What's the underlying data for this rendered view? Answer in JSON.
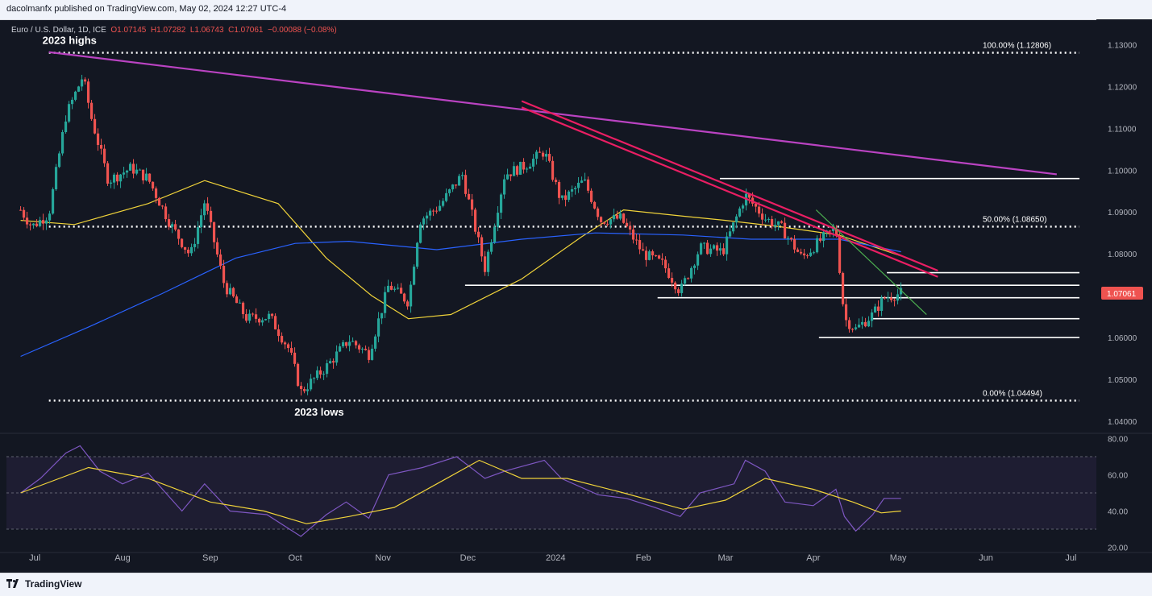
{
  "header": {
    "publisher": "dacolmanfx published on TradingView.com, May 02, 2024 12:27 UTC-4"
  },
  "symbol": {
    "name": "Euro / U.S. Dollar, 1D, ICE",
    "open": "O1.07145",
    "high": "H1.07282",
    "low": "L1.06743",
    "close": "C1.07061",
    "change": "−0.00088 (−0.08%)"
  },
  "footer": {
    "brand": "TradingView"
  },
  "colors": {
    "background": "#131722",
    "up": "#26a69a",
    "down": "#ef5350",
    "trend_magenta": "#ba43c2",
    "trend_pink": "#e91e63",
    "trend_green": "#4caf50",
    "ma50": "#f0d33a",
    "ma200": "#2962ff",
    "rsi": "#7e57c2",
    "rsi_ma": "#f0d33a"
  },
  "chart_data": [
    {
      "type": "candlestick",
      "title": "Euro / U.S. Dollar, 1D, ICE",
      "x_ticks": [
        "Jul",
        "Aug",
        "Sep",
        "Oct",
        "Nov",
        "Dec",
        "2024",
        "Feb",
        "Mar",
        "Apr",
        "May",
        "Jun",
        "Jul"
      ],
      "y_ticks": [
        "1.13000",
        "1.12000",
        "1.11000",
        "1.10000",
        "1.09000",
        "1.08000",
        "1.07000",
        "1.06000",
        "1.05000",
        "1.04000"
      ],
      "ylim": [
        1.0375,
        1.1345
      ],
      "last_price": "1.07061",
      "ohlc_last": {
        "open": 1.07145,
        "high": 1.07282,
        "low": 1.06743,
        "close": 1.07061
      },
      "close_series": [
        {
          "date": "2023-06-26",
          "close": 1.0905
        },
        {
          "date": "2023-06-30",
          "close": 1.0865
        },
        {
          "date": "2023-07-06",
          "close": 1.0895
        },
        {
          "date": "2023-07-12",
          "close": 1.113
        },
        {
          "date": "2023-07-18",
          "close": 1.1225
        },
        {
          "date": "2023-07-21",
          "close": 1.1125
        },
        {
          "date": "2023-07-27",
          "close": 1.0975
        },
        {
          "date": "2023-08-04",
          "close": 1.1005
        },
        {
          "date": "2023-08-10",
          "close": 1.098
        },
        {
          "date": "2023-08-18",
          "close": 1.087
        },
        {
          "date": "2023-08-25",
          "close": 1.0795
        },
        {
          "date": "2023-08-30",
          "close": 1.0925
        },
        {
          "date": "2023-09-06",
          "close": 1.0725
        },
        {
          "date": "2023-09-14",
          "close": 1.0645
        },
        {
          "date": "2023-09-22",
          "close": 1.065
        },
        {
          "date": "2023-09-29",
          "close": 1.057
        },
        {
          "date": "2023-10-03",
          "close": 1.047
        },
        {
          "date": "2023-10-12",
          "close": 1.053
        },
        {
          "date": "2023-10-20",
          "close": 1.0595
        },
        {
          "date": "2023-10-27",
          "close": 1.056
        },
        {
          "date": "2023-11-03",
          "close": 1.0725
        },
        {
          "date": "2023-11-10",
          "close": 1.0685
        },
        {
          "date": "2023-11-14",
          "close": 1.088
        },
        {
          "date": "2023-11-21",
          "close": 1.0915
        },
        {
          "date": "2023-11-29",
          "close": 1.099
        },
        {
          "date": "2023-12-07",
          "close": 1.0765
        },
        {
          "date": "2023-12-14",
          "close": 1.099
        },
        {
          "date": "2023-12-21",
          "close": 1.101
        },
        {
          "date": "2023-12-28",
          "close": 1.1045
        },
        {
          "date": "2024-01-03",
          "close": 1.0925
        },
        {
          "date": "2024-01-11",
          "close": 1.0975
        },
        {
          "date": "2024-01-17",
          "close": 1.088
        },
        {
          "date": "2024-01-24",
          "close": 1.0885
        },
        {
          "date": "2024-02-01",
          "close": 1.08
        },
        {
          "date": "2024-02-08",
          "close": 1.0775
        },
        {
          "date": "2024-02-14",
          "close": 1.071
        },
        {
          "date": "2024-02-21",
          "close": 1.0815
        },
        {
          "date": "2024-02-29",
          "close": 1.0805
        },
        {
          "date": "2024-03-08",
          "close": 1.094
        },
        {
          "date": "2024-03-15",
          "close": 1.0885
        },
        {
          "date": "2024-03-21",
          "close": 1.086
        },
        {
          "date": "2024-03-28",
          "close": 1.079
        },
        {
          "date": "2024-04-04",
          "close": 1.0835
        },
        {
          "date": "2024-04-09",
          "close": 1.086
        },
        {
          "date": "2024-04-12",
          "close": 1.0645
        },
        {
          "date": "2024-04-16",
          "close": 1.062
        },
        {
          "date": "2024-04-22",
          "close": 1.0655
        },
        {
          "date": "2024-04-26",
          "close": 1.0695
        },
        {
          "date": "2024-05-02",
          "close": 1.07061
        }
      ],
      "levels": [
        {
          "label": "100.00% (1.12806)",
          "price": 1.12806,
          "style": "dotted",
          "from": "2023-07-06",
          "to": "2024-07-10"
        },
        {
          "label": "50.00% (1.08650)",
          "price": 1.0865,
          "style": "dotted",
          "from": "2023-07-06",
          "to": "2024-07-10"
        },
        {
          "label": "0.00% (1.04494)",
          "price": 1.04494,
          "style": "dotted",
          "from": "2023-07-06",
          "to": "2024-07-10"
        },
        {
          "label": "",
          "price": 1.098,
          "style": "solid",
          "from": "2024-02-28",
          "to": "2024-07-10"
        },
        {
          "label": "",
          "price": 1.0755,
          "style": "solid",
          "from": "2024-04-27",
          "to": "2024-07-10"
        },
        {
          "label": "",
          "price": 1.0725,
          "style": "solid",
          "from": "2023-11-30",
          "to": "2024-07-10"
        },
        {
          "label": "",
          "price": 1.0695,
          "style": "solid",
          "from": "2024-02-06",
          "to": "2024-07-10"
        },
        {
          "label": "",
          "price": 1.0645,
          "style": "solid",
          "from": "2024-04-22",
          "to": "2024-07-10"
        },
        {
          "label": "",
          "price": 1.06,
          "style": "solid",
          "from": "2024-04-03",
          "to": "2024-07-10"
        }
      ],
      "annotations": [
        {
          "text": "2023 highs",
          "date": "2023-07-06",
          "price": 1.129
        },
        {
          "text": "2023 lows",
          "date": "2023-10-03",
          "price": 1.044
        }
      ],
      "trendlines": [
        {
          "name": "long-term-resistance",
          "color": "magenta",
          "points": [
            [
              "2023-07-06",
              1.1282
            ],
            [
              "2024-06-26",
              1.099
            ]
          ]
        },
        {
          "name": "channel-upper",
          "color": "pink",
          "points": [
            [
              "2023-12-20",
              1.1165
            ],
            [
              "2024-05-15",
              1.076
            ]
          ]
        },
        {
          "name": "channel-lower",
          "color": "pink",
          "points": [
            [
              "2023-12-20",
              1.115
            ],
            [
              "2024-05-15",
              1.0745
            ]
          ]
        },
        {
          "name": "short-term-downtrend",
          "color": "green",
          "points": [
            [
              "2024-04-02",
              1.0905
            ],
            [
              "2024-05-11",
              1.0655
            ]
          ]
        }
      ],
      "moving_averages": [
        {
          "name": "50-day",
          "color": "yellow",
          "points": [
            [
              "2023-06-26",
              1.088
            ],
            [
              "2023-07-15",
              1.087
            ],
            [
              "2023-08-10",
              1.092
            ],
            [
              "2023-08-30",
              1.0975
            ],
            [
              "2023-09-25",
              1.092
            ],
            [
              "2023-10-12",
              1.079
            ],
            [
              "2023-10-28",
              1.07
            ],
            [
              "2023-11-10",
              1.0645
            ],
            [
              "2023-11-25",
              1.0655
            ],
            [
              "2023-12-20",
              1.074
            ],
            [
              "2024-01-10",
              1.084
            ],
            [
              "2024-01-25",
              1.0905
            ],
            [
              "2024-02-15",
              1.089
            ],
            [
              "2024-03-01",
              1.088
            ],
            [
              "2024-03-20",
              1.0865
            ],
            [
              "2024-04-10",
              1.0845
            ],
            [
              "2024-05-02",
              1.0795
            ]
          ]
        },
        {
          "name": "200-day",
          "color": "blue",
          "points": [
            [
              "2023-06-26",
              1.0555
            ],
            [
              "2023-07-20",
              1.0625
            ],
            [
              "2023-08-15",
              1.0705
            ],
            [
              "2023-09-10",
              1.079
            ],
            [
              "2023-10-01",
              1.0825
            ],
            [
              "2023-10-20",
              1.083
            ],
            [
              "2023-11-20",
              1.081
            ],
            [
              "2023-12-20",
              1.0835
            ],
            [
              "2024-01-15",
              1.085
            ],
            [
              "2024-02-15",
              1.0845
            ],
            [
              "2024-03-10",
              1.0835
            ],
            [
              "2024-04-10",
              1.0835
            ],
            [
              "2024-05-02",
              1.0805
            ]
          ]
        }
      ]
    },
    {
      "type": "line",
      "title": "RSI",
      "y_ticks": [
        "80.00",
        "60.00",
        "40.00",
        "20.00"
      ],
      "ylim": [
        18,
        82
      ],
      "band": [
        30,
        70
      ],
      "midline": 50,
      "series": [
        {
          "name": "",
          "color": "purple",
          "values": [
            [
              "2023-06-26",
              50
            ],
            [
              "2023-07-03",
              58
            ],
            [
              "2023-07-12",
              72
            ],
            [
              "2023-07-17",
              76
            ],
            [
              "2023-07-24",
              62
            ],
            [
              "2023-08-01",
              55
            ],
            [
              "2023-08-10",
              61
            ],
            [
              "2023-08-22",
              40
            ],
            [
              "2023-08-30",
              55
            ],
            [
              "2023-09-08",
              40
            ],
            [
              "2023-09-21",
              38
            ],
            [
              "2023-10-03",
              26
            ],
            [
              "2023-10-12",
              38
            ],
            [
              "2023-10-19",
              45
            ],
            [
              "2023-10-27",
              36
            ],
            [
              "2023-11-03",
              60
            ],
            [
              "2023-11-15",
              64
            ],
            [
              "2023-11-27",
              70
            ],
            [
              "2023-12-07",
              58
            ],
            [
              "2023-12-14",
              62
            ],
            [
              "2023-12-28",
              68
            ],
            [
              "2024-01-03",
              58
            ],
            [
              "2024-01-16",
              49
            ],
            [
              "2024-01-26",
              47
            ],
            [
              "2024-02-05",
              42
            ],
            [
              "2024-02-14",
              37
            ],
            [
              "2024-02-21",
              50
            ],
            [
              "2024-03-04",
              55
            ],
            [
              "2024-03-08",
              68
            ],
            [
              "2024-03-15",
              62
            ],
            [
              "2024-03-22",
              45
            ],
            [
              "2024-04-01",
              43
            ],
            [
              "2024-04-09",
              52
            ],
            [
              "2024-04-12",
              37
            ],
            [
              "2024-04-16",
              29
            ],
            [
              "2024-04-22",
              38
            ],
            [
              "2024-04-26",
              47
            ],
            [
              "2024-05-02",
              47
            ]
          ]
        },
        {
          "name": "",
          "color": "yellow",
          "values": [
            [
              "2023-06-26",
              50
            ],
            [
              "2023-07-20",
              64
            ],
            [
              "2023-08-10",
              58
            ],
            [
              "2023-09-01",
              45
            ],
            [
              "2023-09-20",
              40
            ],
            [
              "2023-10-05",
              33
            ],
            [
              "2023-10-20",
              37
            ],
            [
              "2023-11-05",
              42
            ],
            [
              "2023-11-20",
              55
            ],
            [
              "2023-12-05",
              68
            ],
            [
              "2023-12-20",
              58
            ],
            [
              "2024-01-05",
              58
            ],
            [
              "2024-01-25",
              50
            ],
            [
              "2024-02-15",
              41
            ],
            [
              "2024-03-01",
              46
            ],
            [
              "2024-03-15",
              58
            ],
            [
              "2024-04-01",
              52
            ],
            [
              "2024-04-15",
              45
            ],
            [
              "2024-04-25",
              39
            ],
            [
              "2024-05-02",
              40
            ]
          ]
        }
      ]
    }
  ]
}
